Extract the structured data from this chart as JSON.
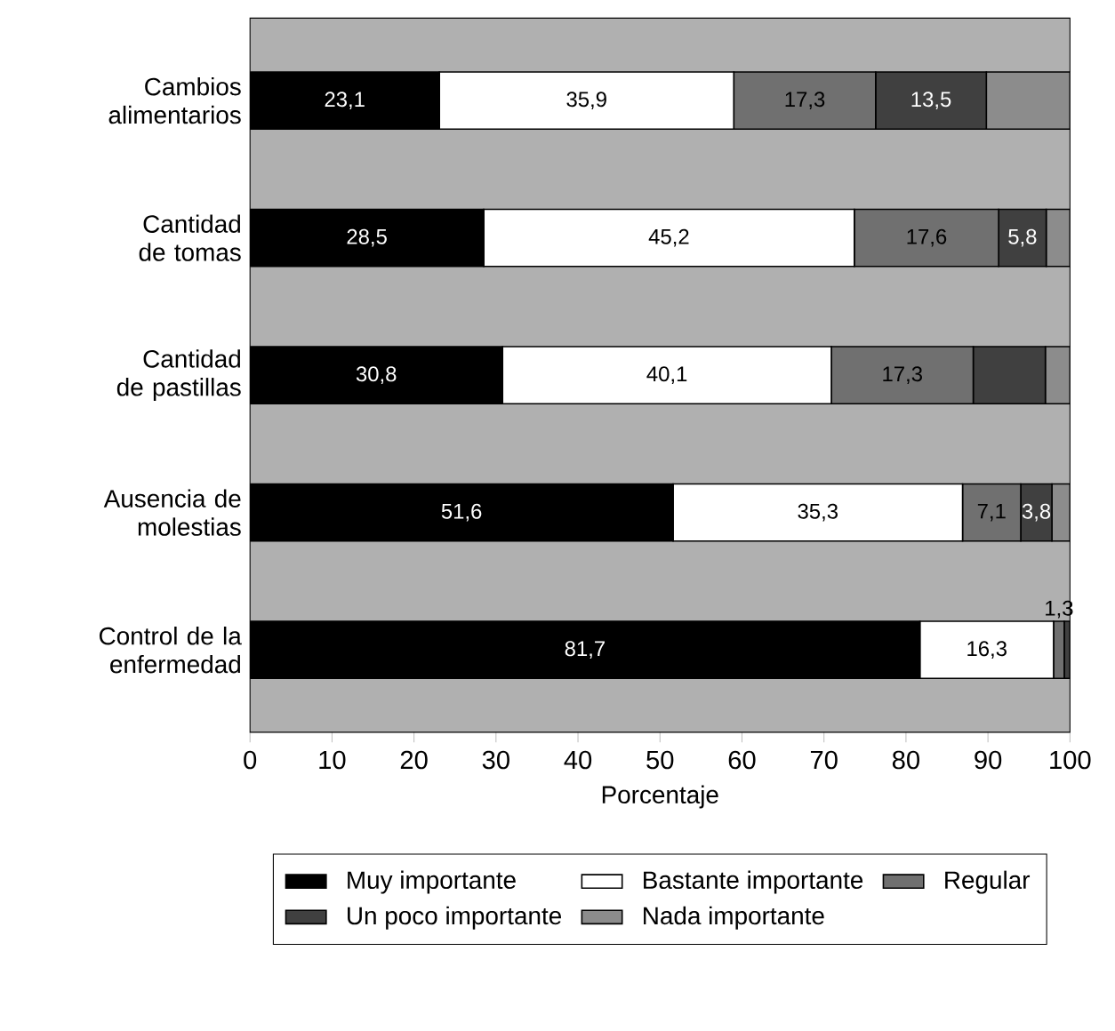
{
  "chart_data": {
    "type": "bar",
    "orientation": "horizontal",
    "stacked": true,
    "xlabel": "Porcentaje",
    "categories": [
      "Cambios alimentarios",
      "Cantidad de tomas",
      "Cantidad de pastillas",
      "Ausencia de molestias",
      "Control de la enfermedad"
    ],
    "series": [
      {
        "name": "Muy importante",
        "color": "#000000",
        "values": [
          23.1,
          28.5,
          30.8,
          51.6,
          81.7
        ],
        "value_labels": [
          "23,1",
          "28,5",
          "30,8",
          "51,6",
          "81,7"
        ]
      },
      {
        "name": "Bastante importante",
        "color": "#ffffff",
        "values": [
          35.9,
          45.2,
          40.1,
          35.3,
          16.3
        ],
        "value_labels": [
          "35,9",
          "45,2",
          "40,1",
          "35,3",
          "16,3"
        ]
      },
      {
        "name": "Regular",
        "color": "#707070",
        "values": [
          17.3,
          17.6,
          17.3,
          7.1,
          1.3
        ],
        "value_labels": [
          "17,3",
          "17,6",
          "17,3",
          "7,1",
          "1,3"
        ]
      },
      {
        "name": "Un poco importante",
        "color": "#404040",
        "values": [
          13.5,
          5.8,
          8.8,
          3.8,
          0.7
        ],
        "value_labels": [
          "13,5",
          "5,8",
          null,
          "3,8",
          null
        ]
      },
      {
        "name": "Nada importante",
        "color": "#8c8c8c",
        "values": [
          10.2,
          2.9,
          3.0,
          2.2,
          null
        ],
        "value_labels": [
          null,
          null,
          null,
          null,
          null
        ]
      }
    ],
    "xlim": [
      0,
      100
    ],
    "xticks": [
      0,
      10,
      20,
      30,
      40,
      50,
      60,
      70,
      80,
      90,
      100
    ],
    "grid": false,
    "legend": "bottom"
  }
}
